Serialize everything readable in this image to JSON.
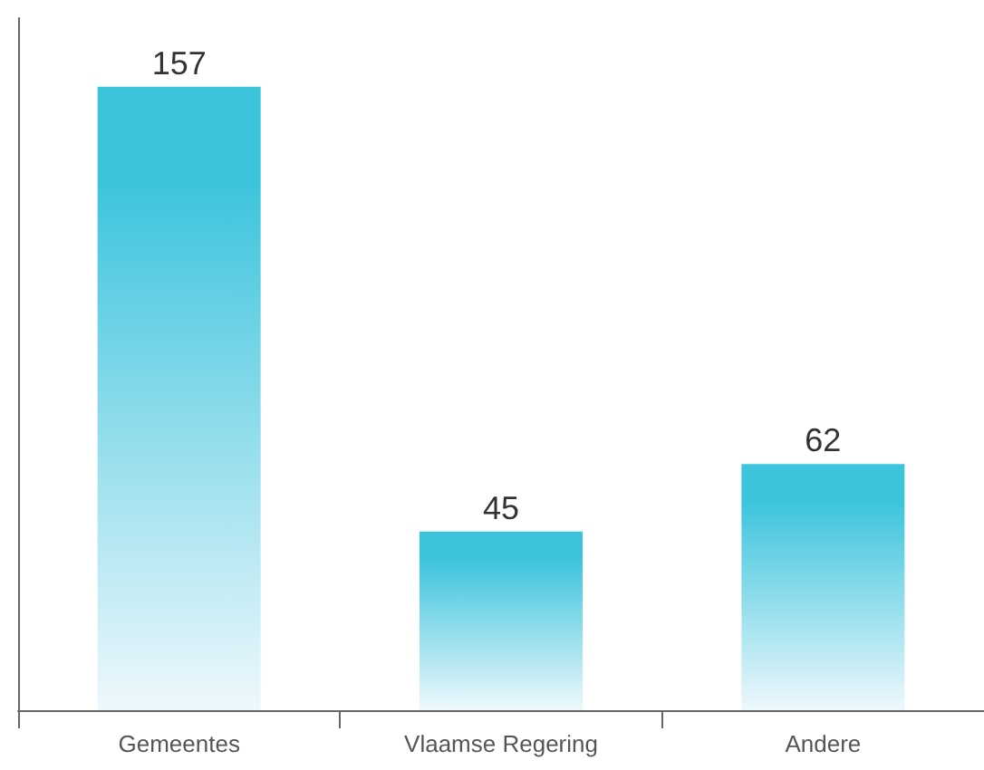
{
  "chart_data": {
    "type": "bar",
    "categories": [
      "Gemeentes",
      "Vlaamse Regering",
      "Andere"
    ],
    "values": [
      157,
      45,
      62
    ],
    "color": "#3cc4dd",
    "data_labels": true
  }
}
